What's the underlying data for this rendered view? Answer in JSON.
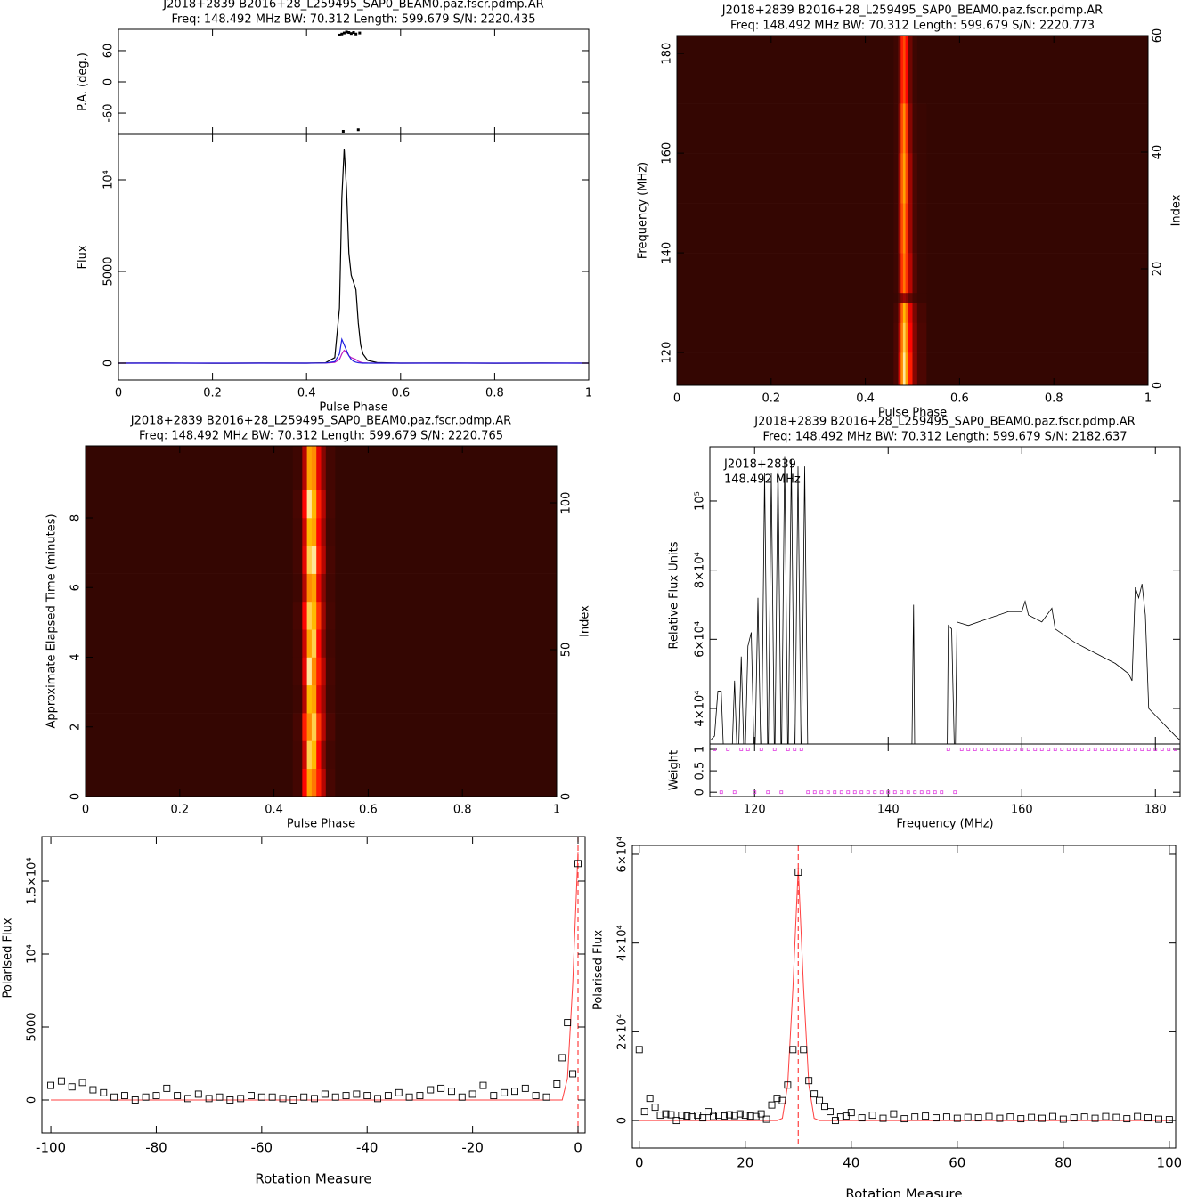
{
  "chart_data": [
    {
      "type": "profile",
      "title": "J2018+2839  B2016+28_L259495_SAP0_BEAM0.paz.fscr.pdmp.AR",
      "subtitle": "Freq: 148.492 MHz BW: 70.312 Length: 599.679 S/N: 2220.435",
      "xlabel": "Pulse Phase",
      "ylabel": "Flux",
      "xlim": [
        0,
        1
      ],
      "xticks": [
        0,
        0.2,
        0.4,
        0.6,
        0.8,
        1
      ],
      "ylim": [
        -922,
        12476
      ],
      "yticks": [
        0,
        5000,
        {
          "value": 10000,
          "label": "10⁴"
        }
      ],
      "x": [
        0,
        0.1,
        0.2,
        0.3,
        0.4,
        0.44,
        0.46,
        0.47,
        0.475,
        0.48,
        0.485,
        0.49,
        0.495,
        0.5,
        0.505,
        0.51,
        0.515,
        0.52,
        0.53,
        0.55,
        0.6,
        0.7,
        0.8,
        0.9,
        1
      ],
      "series": [
        {
          "color": "#000000",
          "values": [
            0,
            10,
            -10,
            5,
            0,
            20,
            300,
            3000,
            9000,
            11700,
            9500,
            6000,
            4800,
            4400,
            4000,
            2200,
            1000,
            500,
            150,
            30,
            0,
            10,
            -5,
            5,
            0
          ]
        },
        {
          "color": "#c020c0",
          "values": [
            0,
            0,
            0,
            0,
            0,
            5,
            40,
            200,
            500,
            700,
            600,
            400,
            300,
            250,
            200,
            100,
            50,
            20,
            5,
            0,
            0,
            0,
            0,
            0,
            0
          ]
        },
        {
          "color": "#2020e0",
          "values": [
            0,
            0,
            0,
            0,
            0,
            10,
            80,
            500,
            1300,
            1000,
            700,
            400,
            200,
            100,
            50,
            20,
            10,
            0,
            0,
            0,
            0,
            0,
            0,
            0,
            0
          ]
        }
      ],
      "pa": {
        "ylabel": "P.A. (deg.)",
        "ylim": [
          -101,
          101
        ],
        "yticks": [
          -60,
          0,
          60
        ],
        "color": "#000000",
        "x": [
          0.47,
          0.475,
          0.478,
          0.48,
          0.485,
          0.49,
          0.495,
          0.5,
          0.505,
          0.51,
          0.513
        ],
        "values": [
          90,
          92,
          -95,
          94,
          96,
          95,
          93,
          95,
          92,
          -92,
          94
        ]
      }
    },
    {
      "type": "heatmap",
      "title": "J2018+2839  B2016+28_L259495_SAP0_BEAM0.paz.fscr.pdmp.AR",
      "subtitle": "Freq: 148.492 MHz BW: 70.312 Length: 599.679 S/N: 2220.773",
      "xlabel": "Pulse Phase",
      "ylabel": "Frequency (MHz)",
      "y2label": "Index",
      "xlim": [
        0,
        1
      ],
      "xticks": [
        0,
        0.2,
        0.4,
        0.6,
        0.8,
        1
      ],
      "ylim": [
        113.4,
        183.6
      ],
      "yticks": [
        120,
        140,
        160,
        180
      ],
      "y2lim": [
        0,
        60
      ],
      "y2ticks": [
        0,
        20,
        40,
        60
      ],
      "colormap": "heat",
      "x_edges": [
        0,
        0.46,
        0.47,
        0.475,
        0.48,
        0.485,
        0.49,
        0.5,
        0.51,
        0.53,
        1
      ],
      "y_edges": [
        113.4,
        120,
        126,
        130,
        132,
        140,
        150,
        160,
        170,
        183.6
      ],
      "values": [
        [
          0.03,
          0.08,
          0.35,
          0.75,
          0.95,
          0.8,
          0.5,
          0.2,
          0.08,
          0.03
        ],
        [
          0.03,
          0.08,
          0.3,
          0.7,
          0.9,
          0.75,
          0.45,
          0.2,
          0.08,
          0.03
        ],
        [
          0.03,
          0.07,
          0.25,
          0.65,
          0.85,
          0.7,
          0.4,
          0.18,
          0.07,
          0.03
        ],
        [
          0.03,
          0.04,
          0.1,
          0.2,
          0.25,
          0.2,
          0.12,
          0.06,
          0.04,
          0.03
        ],
        [
          0.03,
          0.05,
          0.2,
          0.55,
          0.7,
          0.55,
          0.3,
          0.1,
          0.04,
          0.03
        ],
        [
          0.03,
          0.05,
          0.25,
          0.6,
          0.75,
          0.55,
          0.25,
          0.08,
          0.04,
          0.03
        ],
        [
          0.03,
          0.05,
          0.25,
          0.65,
          0.8,
          0.6,
          0.25,
          0.08,
          0.04,
          0.03
        ],
        [
          0.03,
          0.05,
          0.2,
          0.6,
          0.75,
          0.55,
          0.2,
          0.06,
          0.04,
          0.03
        ],
        [
          0.03,
          0.05,
          0.15,
          0.5,
          0.6,
          0.45,
          0.15,
          0.05,
          0.03,
          0.03
        ]
      ]
    },
    {
      "type": "heatmap",
      "title": "J2018+2839  B2016+28_L259495_SAP0_BEAM0.paz.fscr.pdmp.AR",
      "subtitle": "Freq: 148.492 MHz BW: 70.312 Length: 599.679 S/N: 2220.765",
      "xlabel": "Pulse Phase",
      "ylabel": "Approximate Elapsed Time (minutes)",
      "y2label": "Index",
      "xlim": [
        0,
        1
      ],
      "xticks": [
        0,
        0.2,
        0.4,
        0.6,
        0.8,
        1
      ],
      "ylim": [
        0,
        10.07
      ],
      "yticks": [
        0,
        2,
        4,
        6,
        8
      ],
      "y2lim": [
        0,
        119.4
      ],
      "y2ticks": [
        0,
        50,
        100
      ],
      "colormap": "heat",
      "x_edges": [
        0,
        0.44,
        0.46,
        0.47,
        0.48,
        0.49,
        0.5,
        0.51,
        0.53,
        1
      ],
      "y_edges": [
        0,
        0.8,
        1.6,
        2.4,
        3.2,
        4,
        4.8,
        5.6,
        6.4,
        7.2,
        8,
        8.8,
        10.07
      ],
      "values": [
        [
          0.03,
          0.06,
          0.45,
          0.8,
          0.7,
          0.5,
          0.3,
          0.07,
          0.03
        ],
        [
          0.03,
          0.06,
          0.35,
          0.9,
          0.85,
          0.45,
          0.2,
          0.06,
          0.03
        ],
        [
          0.03,
          0.07,
          0.5,
          0.75,
          0.9,
          0.55,
          0.3,
          0.08,
          0.03
        ],
        [
          0.03,
          0.05,
          0.3,
          0.85,
          0.8,
          0.4,
          0.25,
          0.06,
          0.03
        ],
        [
          0.03,
          0.06,
          0.4,
          0.95,
          0.75,
          0.5,
          0.3,
          0.07,
          0.03
        ],
        [
          0.03,
          0.06,
          0.35,
          0.8,
          0.9,
          0.45,
          0.2,
          0.06,
          0.03
        ],
        [
          0.03,
          0.07,
          0.45,
          0.9,
          0.85,
          0.55,
          0.25,
          0.07,
          0.03
        ],
        [
          0.03,
          0.05,
          0.3,
          0.75,
          0.8,
          0.4,
          0.2,
          0.06,
          0.03
        ],
        [
          0.03,
          0.06,
          0.4,
          0.9,
          0.95,
          0.5,
          0.3,
          0.07,
          0.03
        ],
        [
          0.03,
          0.06,
          0.35,
          0.85,
          0.8,
          0.45,
          0.25,
          0.06,
          0.03
        ],
        [
          0.03,
          0.07,
          0.45,
          0.95,
          0.85,
          0.5,
          0.3,
          0.07,
          0.03
        ],
        [
          0.03,
          0.05,
          0.3,
          0.8,
          0.75,
          0.4,
          0.2,
          0.06,
          0.03
        ]
      ]
    },
    {
      "type": "spectrum",
      "title": "J2018+2839  B2016+28_L259495_SAP0_BEAM0.paz.fscr.pdmp.AR",
      "subtitle": "Freq: 148.492 MHz BW: 70.312 Length: 599.679 S/N: 2182.637",
      "annotations": [
        "J2018+2839",
        "148.492 MHz"
      ],
      "xlabel": "Frequency (MHz)",
      "ylabel": "Relative Flux Units",
      "color": "#000000",
      "xlim": [
        113.3,
        183.7
      ],
      "xticks": [
        120,
        140,
        160,
        180
      ],
      "ylim": [
        29700,
        115700
      ],
      "yticks": [
        {
          "value": 40000,
          "label": "4×10⁴"
        },
        {
          "value": 60000,
          "label": "6×10⁴"
        },
        {
          "value": 80000,
          "label": "8×10⁴"
        },
        {
          "value": 100000,
          "label": "10⁵"
        }
      ],
      "x": [
        113.5,
        114,
        114.5,
        115,
        115.5,
        116.5,
        117,
        117.5,
        118,
        118.5,
        119,
        119.5,
        120,
        120.5,
        121,
        121.5,
        122,
        122.5,
        123,
        123.5,
        124,
        124.5,
        125,
        125.5,
        126,
        126.5,
        127,
        127.5,
        128,
        128.2,
        143.5,
        143.8,
        144,
        144.2,
        148.8,
        149,
        149.5,
        150,
        150.3,
        152,
        155,
        158,
        160,
        160.5,
        161,
        163,
        164.5,
        165,
        168,
        170,
        172,
        174,
        176,
        176.5,
        177,
        177.5,
        178,
        178.5,
        179,
        180,
        181,
        182,
        183,
        183.6
      ],
      "values": [
        31000,
        32000,
        45000,
        45000,
        20000,
        20000,
        48000,
        20000,
        55000,
        20000,
        58000,
        62000,
        20000,
        72000,
        20000,
        108000,
        20000,
        108000,
        20000,
        112000,
        20000,
        113000,
        20000,
        112000,
        20000,
        110000,
        20000,
        110000,
        20000,
        null,
        20000,
        70000,
        20000,
        null,
        20000,
        64000,
        63000,
        20000,
        65000,
        64000,
        66000,
        68000,
        68000,
        71000,
        67000,
        65000,
        69000,
        63000,
        59000,
        57000,
        55000,
        53000,
        50000,
        48000,
        75000,
        72000,
        76000,
        67000,
        40000,
        38000,
        36000,
        34000,
        32000,
        31000
      ],
      "weights": {
        "ylabel": "Weight",
        "color": "#e040e0",
        "ylim": [
          -0.1,
          1.125
        ],
        "yticks": [
          0,
          0.5,
          1
        ],
        "x": [
          114,
          115,
          116,
          117,
          118,
          119,
          120,
          121,
          122,
          123,
          124,
          125,
          126,
          127,
          128,
          129,
          130,
          131,
          132,
          133,
          134,
          135,
          136,
          137,
          138,
          139,
          140,
          141,
          142,
          143,
          144,
          145,
          146,
          147,
          148,
          149,
          150,
          151,
          152,
          153,
          154,
          155,
          156,
          157,
          158,
          159,
          160,
          161,
          162,
          163,
          164,
          165,
          166,
          167,
          168,
          169,
          170,
          171,
          172,
          173,
          174,
          175,
          176,
          177,
          178,
          179,
          180,
          181,
          182,
          183
        ],
        "values": [
          1,
          0,
          1,
          0,
          1,
          1,
          0,
          1,
          0,
          1,
          0,
          1,
          1,
          1,
          0,
          0,
          0,
          0,
          0,
          0,
          0,
          0,
          0,
          0,
          0,
          0,
          0,
          0,
          0,
          0,
          0,
          0,
          0,
          0,
          0,
          1,
          0,
          1,
          1,
          1,
          1,
          1,
          1,
          1,
          1,
          1,
          1,
          1,
          1,
          1,
          1,
          1,
          1,
          1,
          1,
          1,
          1,
          1,
          1,
          1,
          1,
          1,
          1,
          1,
          1,
          1,
          1,
          1,
          1,
          1
        ]
      }
    },
    {
      "type": "scatter",
      "xlabel": "Rotation Measure",
      "ylabel": "Polarised Flux",
      "color": "#000000",
      "xlim": [
        -101.7,
        1.35
      ],
      "xticks": [
        -100,
        -80,
        -60,
        -40,
        -20,
        0
      ],
      "ylim": [
        -2256,
        18049
      ],
      "yticks": [
        0,
        5000,
        {
          "value": 10000,
          "label": "10⁴"
        },
        {
          "value": 15000,
          "label": "1.5×10⁴"
        }
      ],
      "x": [
        -100,
        -98,
        -96,
        -94,
        -92,
        -90,
        -88,
        -86,
        -84,
        -82,
        -80,
        -78,
        -76,
        -74,
        -72,
        -70,
        -68,
        -66,
        -64,
        -62,
        -60,
        -58,
        -56,
        -54,
        -52,
        -50,
        -48,
        -46,
        -44,
        -42,
        -40,
        -38,
        -36,
        -34,
        -32,
        -30,
        -28,
        -26,
        -24,
        -22,
        -20,
        -18,
        -16,
        -14,
        -12,
        -10,
        -8,
        -6,
        -4,
        -3,
        -2,
        -1,
        0
      ],
      "values": [
        1000,
        1300,
        900,
        1200,
        700,
        500,
        200,
        300,
        0,
        200,
        300,
        800,
        300,
        100,
        400,
        100,
        200,
        0,
        100,
        300,
        200,
        200,
        100,
        0,
        200,
        100,
        400,
        200,
        300,
        400,
        300,
        100,
        300,
        500,
        200,
        300,
        700,
        800,
        600,
        200,
        400,
        1000,
        300,
        500,
        600,
        800,
        300,
        200,
        1100,
        2900,
        5300,
        1800,
        16200
      ],
      "fit": {
        "color": "#ff4040",
        "x": [
          -100,
          -3,
          -2,
          -1,
          0
        ],
        "values": [
          0,
          0,
          1500,
          8000,
          17000
        ]
      },
      "peak": 0
    },
    {
      "type": "scatter",
      "xlabel": "Rotation Measure",
      "ylabel": "Polarised Flux",
      "color": "#000000",
      "xlim": [
        -1.3,
        101.2
      ],
      "xticks": [
        0,
        20,
        40,
        60,
        80,
        100
      ],
      "ylim": [
        -6200,
        62000
      ],
      "yticks": [
        0,
        {
          "value": 20000,
          "label": "2×10⁴"
        },
        {
          "value": 40000,
          "label": "4×10⁴"
        },
        {
          "value": 60000,
          "label": "6×10⁴"
        }
      ],
      "x": [
        0,
        1,
        2,
        3,
        4,
        5,
        6,
        7,
        8,
        9,
        10,
        11,
        12,
        13,
        14,
        15,
        16,
        17,
        18,
        19,
        20,
        21,
        22,
        23,
        24,
        25,
        26,
        27,
        28,
        29,
        30,
        31,
        32,
        33,
        34,
        35,
        36,
        37,
        38,
        39,
        40,
        42,
        44,
        46,
        48,
        50,
        52,
        54,
        56,
        58,
        60,
        62,
        64,
        66,
        68,
        70,
        72,
        74,
        76,
        78,
        80,
        82,
        84,
        86,
        88,
        90,
        92,
        94,
        96,
        98,
        100
      ],
      "values": [
        16000,
        2000,
        5000,
        3000,
        1200,
        1500,
        1300,
        0,
        1200,
        1000,
        800,
        1200,
        600,
        2000,
        900,
        1200,
        1000,
        1300,
        1100,
        1500,
        1200,
        1000,
        900,
        1500,
        300,
        3500,
        5000,
        4500,
        8000,
        16000,
        56000,
        16000,
        9000,
        6000,
        4500,
        3200,
        2000,
        0,
        800,
        1000,
        1800,
        600,
        1200,
        500,
        1500,
        400,
        800,
        1000,
        600,
        800,
        500,
        700,
        600,
        900,
        500,
        800,
        400,
        700,
        500,
        900,
        300,
        600,
        800,
        500,
        900,
        700,
        400,
        900,
        600,
        300,
        200
      ],
      "fit": {
        "color": "#ff4040",
        "x": [
          0,
          26,
          27,
          28,
          29,
          30,
          31,
          32,
          33,
          34,
          100
        ],
        "values": [
          0,
          0,
          500,
          8000,
          30000,
          57000,
          30000,
          8000,
          500,
          0,
          0
        ]
      },
      "peak": 30
    }
  ]
}
